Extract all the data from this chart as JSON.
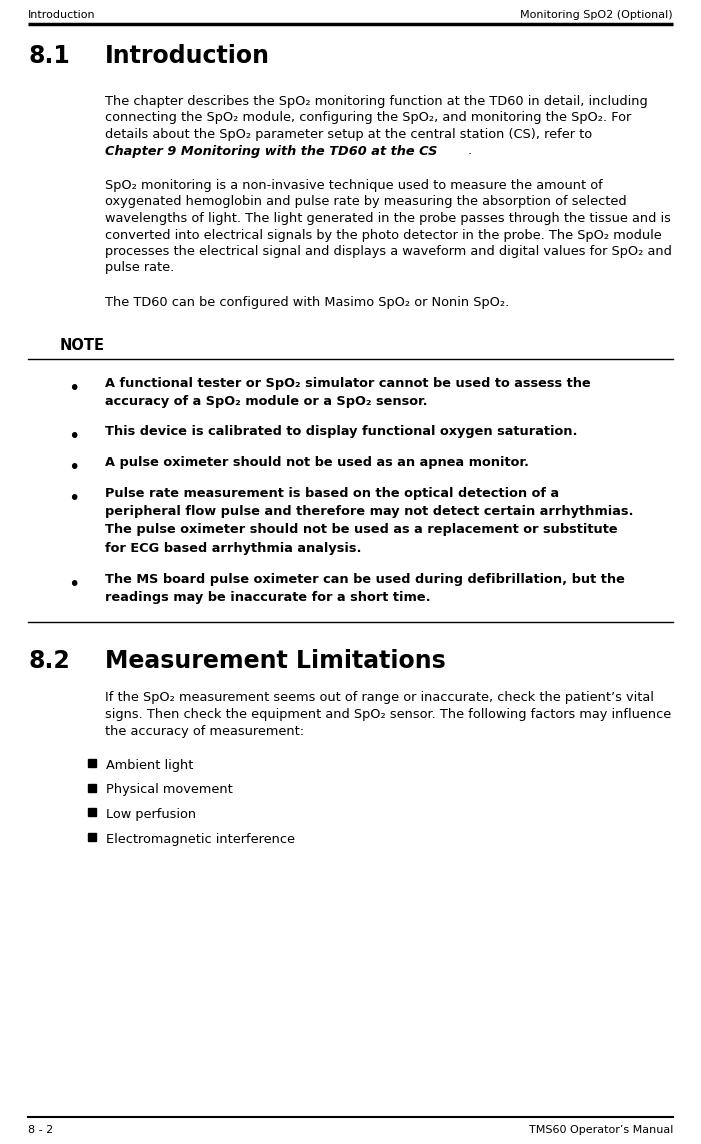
{
  "header_left": "Introduction",
  "header_right": "Monitoring SpO2 (Optional)",
  "footer_left": "8 - 2",
  "footer_right": "TMS60 Operator’s Manual",
  "section_81_para1_lines": [
    "The chapter describes the SpO₂ monitoring function at the TD60 in detail, including",
    "connecting the SpO₂ module, configuring the SpO₂, and monitoring the SpO₂. For",
    "details about the SpO₂ parameter setup at the central station (CS), refer to "
  ],
  "section_81_para1_bold": "Chapter 9",
  "section_81_para1_bold2": "Monitoring with the TD60 at the CS",
  "section_81_para2_lines": [
    "SpO₂ monitoring is a non-invasive technique used to measure the amount of",
    "oxygenated hemoglobin and pulse rate by measuring the absorption of selected",
    "wavelengths of light. The light generated in the probe passes through the tissue and is",
    "converted into electrical signals by the photo detector in the probe. The SpO₂ module",
    "processes the electrical signal and displays a waveform and digital values for SpO₂ and",
    "pulse rate."
  ],
  "section_81_para3": "The TD60 can be configured with Masimo SpO₂ or Nonin SpO₂.",
  "note_title": "NOTE",
  "note_b1_lines": [
    "A functional tester or SpO₂ simulator cannot be used to assess the",
    "accuracy of a SpO₂ module or a SpO₂ sensor."
  ],
  "note_b2": "This device is calibrated to display functional oxygen saturation.",
  "note_b3": "A pulse oximeter should not be used as an apnea monitor.",
  "note_b4_lines": [
    "Pulse rate measurement is based on the optical detection of a",
    "peripheral flow pulse and therefore may not detect certain arrhythmias.",
    "The pulse oximeter should not be used as a replacement or substitute",
    "for ECG based arrhythmia analysis."
  ],
  "note_b5_lines": [
    "The MS board pulse oximeter can be used during defibrillation, but the",
    "readings may be inaccurate for a short time."
  ],
  "section_82_para1_lines": [
    "If the SpO₂ measurement seems out of range or inaccurate, check the patient’s vital",
    "signs. Then check the equipment and SpO₂ sensor. The following factors may influence",
    "the accuracy of measurement:"
  ],
  "section_82_bullets": [
    "Ambient light",
    "Physical movement",
    "Low perfusion",
    "Electromagnetic interference"
  ],
  "bg_color": "#ffffff",
  "text_color": "#000000",
  "line_color": "#000000"
}
